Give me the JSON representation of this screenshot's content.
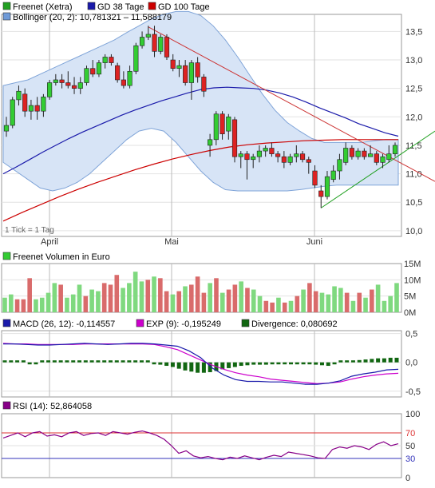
{
  "chart_data": {
    "type": "candlestick",
    "months": [
      "April",
      "Mai",
      "Juni"
    ],
    "tick_note": "1 Tick = 1 Tag",
    "price_panel": {
      "legend": [
        {
          "name": "Freenet (Xetra)",
          "color": "#22a022"
        },
        {
          "name": "GD 38 Tage",
          "color": "#1a1aaa"
        },
        {
          "name": "GD 100 Tage",
          "color": "#cc0000"
        },
        {
          "name": "Bollinger (20, 2): 10,781321 – 11,588179",
          "color": "#6f9ad8"
        }
      ],
      "ylim": [
        9.9,
        13.8
      ],
      "yticks": [
        "10,0",
        "10,5",
        "11,0",
        "11,5",
        "12,0",
        "12,5",
        "13,0",
        "13,5"
      ],
      "ytick_values": [
        10.0,
        10.5,
        11.0,
        11.5,
        12.0,
        12.5,
        13.0,
        13.5
      ],
      "ohlc": [
        [
          11.75,
          12.0,
          11.65,
          11.85
        ],
        [
          11.85,
          12.35,
          11.8,
          12.3
        ],
        [
          12.3,
          12.55,
          12.2,
          12.45
        ],
        [
          12.4,
          12.5,
          12.0,
          12.1
        ],
        [
          12.1,
          12.3,
          11.95,
          12.2
        ],
        [
          12.2,
          12.35,
          11.95,
          12.1
        ],
        [
          12.1,
          12.4,
          12.0,
          12.35
        ],
        [
          12.35,
          12.65,
          12.3,
          12.6
        ],
        [
          12.6,
          12.75,
          12.55,
          12.65
        ],
        [
          12.65,
          12.75,
          12.5,
          12.6
        ],
        [
          12.6,
          12.8,
          12.5,
          12.55
        ],
        [
          12.55,
          12.7,
          12.4,
          12.5
        ],
        [
          12.5,
          12.7,
          12.4,
          12.6
        ],
        [
          12.6,
          12.9,
          12.55,
          12.85
        ],
        [
          12.85,
          13.0,
          12.7,
          12.75
        ],
        [
          12.75,
          13.0,
          12.7,
          12.95
        ],
        [
          12.95,
          13.1,
          12.85,
          13.05
        ],
        [
          13.05,
          13.1,
          12.9,
          12.95
        ],
        [
          12.9,
          12.95,
          12.6,
          12.65
        ],
        [
          12.65,
          12.8,
          12.5,
          12.55
        ],
        [
          12.55,
          12.9,
          12.5,
          12.8
        ],
        [
          12.8,
          13.3,
          12.75,
          13.25
        ],
        [
          13.25,
          13.5,
          13.2,
          13.4
        ],
        [
          13.4,
          13.6,
          13.35,
          13.45
        ],
        [
          13.45,
          13.6,
          13.05,
          13.15
        ],
        [
          13.15,
          13.45,
          13.1,
          13.4
        ],
        [
          13.4,
          13.45,
          13.0,
          13.05
        ],
        [
          13.0,
          13.1,
          12.8,
          12.85
        ],
        [
          12.85,
          13.0,
          12.7,
          12.9
        ],
        [
          12.9,
          13.0,
          12.55,
          12.6
        ],
        [
          12.6,
          13.0,
          12.3,
          12.95
        ],
        [
          12.95,
          13.05,
          12.6,
          12.7
        ],
        [
          12.7,
          12.75,
          12.35,
          12.45
        ],
        [
          11.5,
          11.7,
          11.3,
          11.6
        ],
        [
          11.6,
          12.1,
          11.5,
          12.05
        ],
        [
          12.05,
          12.1,
          11.6,
          11.7
        ],
        [
          11.75,
          12.05,
          11.6,
          12.0
        ],
        [
          11.95,
          12.0,
          11.2,
          11.3
        ],
        [
          11.3,
          11.4,
          11.1,
          11.35
        ],
        [
          11.35,
          11.4,
          10.9,
          11.25
        ],
        [
          11.25,
          11.35,
          11.1,
          11.3
        ],
        [
          11.3,
          11.5,
          11.2,
          11.4
        ],
        [
          11.4,
          11.5,
          11.3,
          11.45
        ],
        [
          11.45,
          11.55,
          11.3,
          11.35
        ],
        [
          11.35,
          11.4,
          11.2,
          11.3
        ],
        [
          11.3,
          11.4,
          11.1,
          11.2
        ],
        [
          11.2,
          11.35,
          11.15,
          11.3
        ],
        [
          11.3,
          11.5,
          11.2,
          11.35
        ],
        [
          11.35,
          11.4,
          11.2,
          11.25
        ],
        [
          11.25,
          11.3,
          11.0,
          11.2
        ],
        [
          11.05,
          11.15,
          10.75,
          10.8
        ],
        [
          10.7,
          10.8,
          10.4,
          10.6
        ],
        [
          10.6,
          11.05,
          10.55,
          10.95
        ],
        [
          10.9,
          11.15,
          10.85,
          11.05
        ],
        [
          11.05,
          11.35,
          10.9,
          11.25
        ],
        [
          11.2,
          11.55,
          11.15,
          11.45
        ],
        [
          11.45,
          11.5,
          11.25,
          11.3
        ],
        [
          11.3,
          11.45,
          11.25,
          11.4
        ],
        [
          11.4,
          11.45,
          11.25,
          11.3
        ],
        [
          11.3,
          11.5,
          11.3,
          11.35
        ],
        [
          11.35,
          11.4,
          11.15,
          11.2
        ],
        [
          11.2,
          11.35,
          11.1,
          11.3
        ],
        [
          11.25,
          11.5,
          11.2,
          11.35
        ],
        [
          11.35,
          11.55,
          11.3,
          11.5
        ]
      ],
      "gd38": [
        11.0,
        11.12,
        11.25,
        11.38,
        11.5,
        11.62,
        11.73,
        11.83,
        11.93,
        12.03,
        12.12,
        12.2,
        12.28,
        12.35,
        12.42,
        12.48,
        12.51,
        12.52,
        12.51,
        12.5,
        12.47,
        12.42,
        12.35,
        12.26,
        12.16,
        12.07,
        11.98,
        11.88,
        11.8,
        11.72,
        11.66
      ],
      "gd100": [
        10.17,
        10.32,
        10.46,
        10.6,
        10.73,
        10.85,
        10.96,
        11.07,
        11.17,
        11.26,
        11.34,
        11.41,
        11.47,
        11.51,
        11.54,
        11.56,
        11.58,
        11.59,
        11.6,
        11.6,
        11.6,
        11.6
      ],
      "boll_upper": [
        12.55,
        12.6,
        12.65,
        12.75,
        12.85,
        12.95,
        13.05,
        13.15,
        13.25,
        13.35,
        13.48,
        13.6,
        13.72,
        13.8,
        13.85,
        13.85,
        13.78,
        13.6,
        13.35,
        13.05,
        12.72,
        12.4,
        12.12,
        11.9,
        11.75,
        11.62,
        11.55,
        11.55,
        11.55,
        11.55,
        11.58,
        11.6,
        11.6
      ],
      "boll_lower": [
        11.2,
        11.05,
        10.9,
        10.75,
        10.7,
        10.75,
        10.85,
        11.0,
        11.2,
        11.4,
        11.6,
        11.75,
        11.8,
        11.75,
        11.55,
        11.3,
        11.05,
        10.85,
        10.72,
        10.7,
        10.7,
        10.7,
        10.7,
        10.7,
        10.72,
        10.75,
        10.78,
        10.8,
        10.8,
        10.8,
        10.8,
        10.8,
        10.8
      ],
      "trend_down": {
        "from": [
          23,
          13.58
        ],
        "to": [
          66,
          10.95
        ]
      },
      "trend_up": {
        "from": [
          51,
          10.4
        ],
        "to": [
          66,
          11.75
        ]
      }
    },
    "volume_panel": {
      "title": "Freenet Volumen in Euro",
      "yticks": [
        "0M",
        "5M",
        "10M",
        "15M"
      ],
      "ytick_values": [
        0,
        5,
        10,
        15
      ],
      "ylim": [
        0,
        15
      ],
      "values_m": [
        4.5,
        5.5,
        4.0,
        4.0,
        10.5,
        4.0,
        4.5,
        6.0,
        9.0,
        8.5,
        4.5,
        5.5,
        8.5,
        5.0,
        7.0,
        6.5,
        9.0,
        8.5,
        11.5,
        7.5,
        9.0,
        12.5,
        9.5,
        10.0,
        11.0,
        10.5,
        6.5,
        5.5,
        6.5,
        8.0,
        8.5,
        11.0,
        6.0,
        9.0,
        10.5,
        6.0,
        7.0,
        8.5,
        9.5,
        7.5,
        7.0,
        5.0,
        3.5,
        3.0,
        4.5,
        3.0,
        3.5,
        5.0,
        7.0,
        9.0,
        6.5,
        6.0,
        5.5,
        8.0,
        7.5,
        6.0,
        3.5,
        6.0,
        4.5,
        7.0,
        8.5,
        3.5,
        5.0,
        9.0
      ],
      "up": [
        1,
        1,
        0,
        0,
        0,
        1,
        1,
        1,
        1,
        0,
        1,
        1,
        1,
        0,
        1,
        1,
        0,
        0,
        0,
        1,
        1,
        1,
        1,
        0,
        1,
        0,
        0,
        1,
        0,
        1,
        0,
        0,
        0,
        1,
        0,
        1,
        0,
        0,
        1,
        0,
        1,
        1,
        0,
        0,
        1,
        0,
        1,
        0,
        1,
        0,
        0,
        1,
        1,
        1,
        1,
        0,
        1,
        0,
        1,
        0,
        1,
        1,
        1,
        1
      ]
    },
    "macd_panel": {
      "legend": [
        {
          "name": "MACD (26, 12): -0,114557",
          "color": "#1a1aaa"
        },
        {
          "name": "EXP (9): -0,195249",
          "color": "#cc00cc"
        },
        {
          "name": "Divergence: 0,080692",
          "color": "#116611"
        }
      ],
      "yticks": [
        "0,5",
        "0,0",
        "-0,5"
      ],
      "ytick_values": [
        0.5,
        0.0,
        -0.5
      ],
      "ylim": [
        -0.6,
        0.55
      ],
      "macd": [
        0.32,
        0.32,
        0.31,
        0.3,
        0.3,
        0.31,
        0.32,
        0.33,
        0.32,
        0.31,
        0.32,
        0.33,
        0.33,
        0.32,
        0.3,
        0.28,
        0.2,
        0.08,
        -0.1,
        -0.22,
        -0.3,
        -0.33,
        -0.33,
        -0.34,
        -0.34,
        -0.36,
        -0.38,
        -0.38,
        -0.36,
        -0.32,
        -0.24,
        -0.2,
        -0.17,
        -0.13,
        -0.12
      ],
      "exp": [
        0.33,
        0.32,
        0.32,
        0.31,
        0.31,
        0.31,
        0.31,
        0.32,
        0.32,
        0.32,
        0.32,
        0.32,
        0.32,
        0.31,
        0.27,
        0.22,
        0.13,
        0.04,
        -0.05,
        -0.12,
        -0.18,
        -0.22,
        -0.25,
        -0.29,
        -0.31,
        -0.33,
        -0.35,
        -0.37,
        -0.36,
        -0.34,
        -0.29,
        -0.25,
        -0.22,
        -0.2,
        -0.19
      ],
      "divergence": [
        0.0,
        0.0,
        0.0,
        0.0,
        -0.01,
        -0.01,
        0.0,
        0.0,
        0.0,
        0.0,
        0.0,
        0.0,
        0.0,
        0.0,
        0.0,
        0.0,
        0.0,
        0.0,
        0.0,
        0.0,
        0.0,
        0.0,
        0.0,
        0.0,
        -0.02,
        -0.04,
        -0.06,
        -0.08,
        -0.11,
        -0.14,
        -0.16,
        -0.18,
        -0.18,
        -0.17,
        -0.15,
        -0.12,
        -0.1,
        -0.08,
        -0.06,
        -0.05,
        -0.04,
        -0.04,
        -0.04,
        -0.03,
        -0.02,
        -0.02,
        -0.02,
        -0.01,
        -0.01,
        -0.03,
        -0.04,
        -0.05,
        -0.06,
        -0.03,
        0.0,
        0.02,
        0.03,
        0.04,
        0.05,
        0.06,
        0.07,
        0.07,
        0.08,
        0.08
      ]
    },
    "rsi_panel": {
      "title": "RSI (14): 52,864058",
      "yticks": [
        "100",
        "70",
        "50",
        "30",
        "0"
      ],
      "ytick_values": [
        100,
        70,
        50,
        30,
        0
      ],
      "ylim": [
        0,
        100
      ],
      "rsi": [
        62,
        66,
        70,
        64,
        70,
        72,
        65,
        67,
        64,
        70,
        72,
        66,
        69,
        70,
        66,
        72,
        70,
        68,
        71,
        73,
        70,
        66,
        60,
        50,
        38,
        42,
        34,
        31,
        33,
        30,
        28,
        32,
        30,
        34,
        31,
        28,
        32,
        35,
        33,
        40,
        38,
        36,
        34,
        31,
        30,
        44,
        48,
        46,
        50,
        48,
        44,
        52,
        56,
        50,
        53
      ]
    }
  }
}
